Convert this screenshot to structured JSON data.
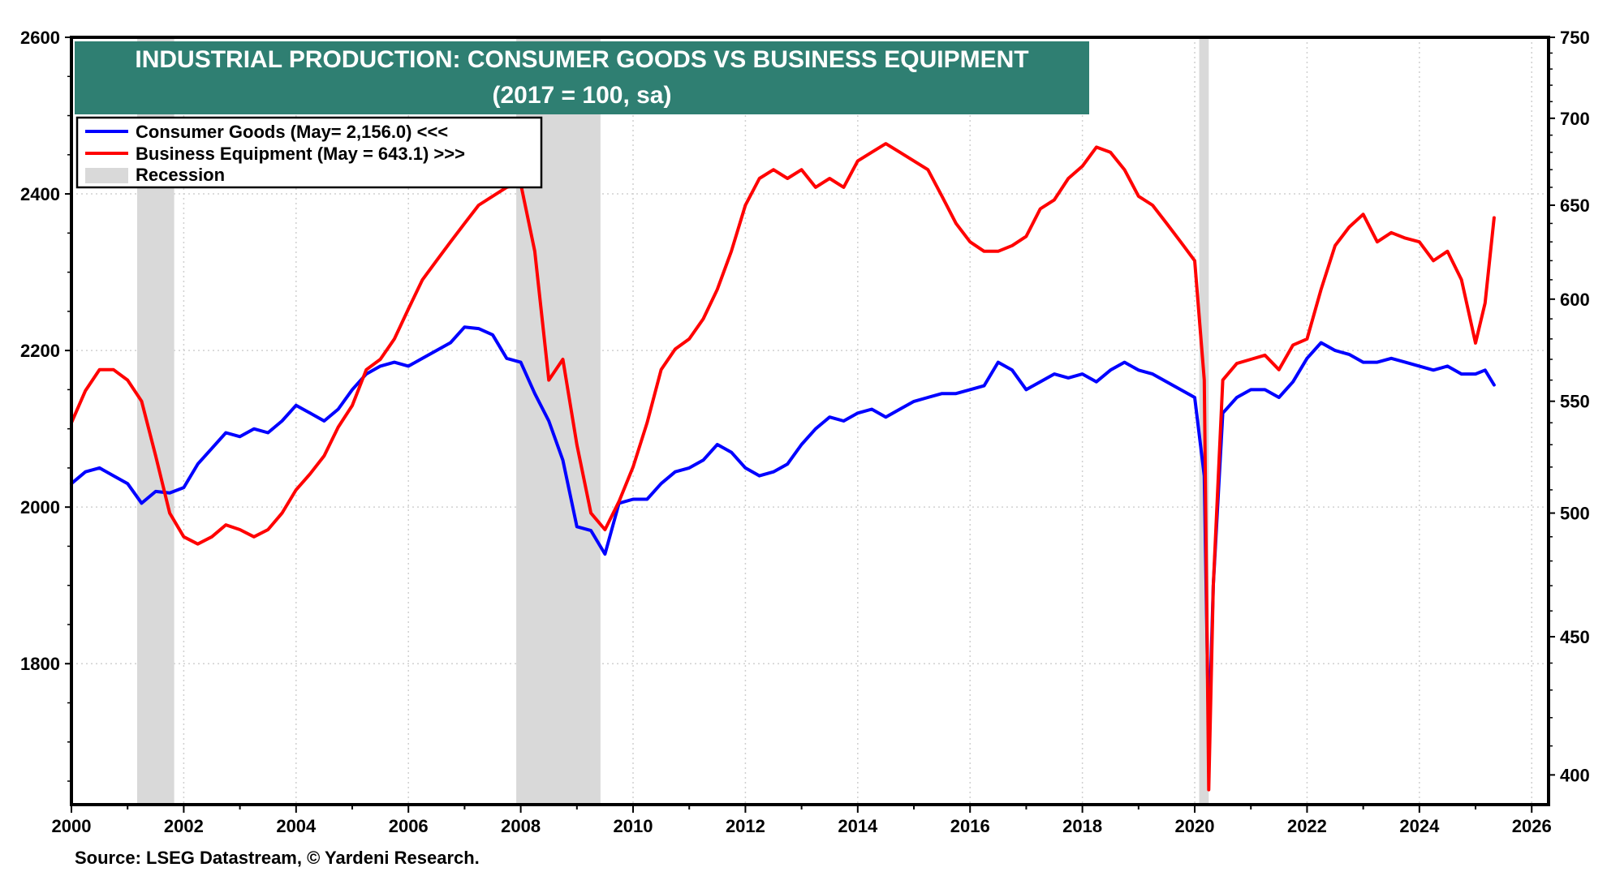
{
  "chart_data": {
    "type": "line",
    "title": "INDUSTRIAL PRODUCTION: CONSUMER GOODS VS BUSINESS EQUIPMENT",
    "subtitle": "(2017 = 100, sa)",
    "source": "Source: LSEG Datastream, © Yardeni Research.",
    "x_axis": {
      "range": [
        2000,
        2026.3
      ],
      "ticks": [
        2000,
        2002,
        2004,
        2006,
        2008,
        2010,
        2012,
        2014,
        2016,
        2018,
        2020,
        2022,
        2024,
        2026
      ],
      "tick_labels": [
        "2000",
        "2002",
        "2004",
        "2006",
        "2008",
        "2010",
        "2012",
        "2014",
        "2016",
        "2018",
        "2020",
        "2022",
        "2024",
        "2026"
      ]
    },
    "y_left": {
      "range": [
        1620,
        2600
      ],
      "ticks": [
        1800,
        2000,
        2200,
        2400,
        2600
      ],
      "tick_labels": [
        "1800",
        "2000",
        "2200",
        "2400",
        "2600"
      ],
      "scale": "linear"
    },
    "y_right": {
      "range": [
        390,
        750
      ],
      "ticks": [
        400,
        450,
        500,
        550,
        600,
        650,
        700,
        750
      ],
      "tick_labels": [
        "400",
        "450",
        "500",
        "550",
        "600",
        "650",
        "700",
        "750"
      ],
      "scale": "log"
    },
    "grid": true,
    "legend": {
      "position": "top-left",
      "items": [
        {
          "label": "Consumer Goods (May= 2,156.0) <<<",
          "color": "#0000ff",
          "kind": "line"
        },
        {
          "label": "Business Equipment (May = 643.1) >>>",
          "color": "#ff0000",
          "kind": "line"
        },
        {
          "label": "Recession",
          "color": "#d9d9d9",
          "kind": "band"
        }
      ]
    },
    "recessions": [
      [
        2001.17,
        2001.83
      ],
      [
        2007.92,
        2009.42
      ],
      [
        2020.08,
        2020.25
      ]
    ],
    "series": [
      {
        "name": "Consumer Goods (May= 2,156.0) <<<",
        "axis": "left",
        "color": "#0000ff",
        "x": [
          2000.0,
          2000.25,
          2000.5,
          2000.75,
          2001.0,
          2001.25,
          2001.5,
          2001.75,
          2002.0,
          2002.25,
          2002.5,
          2002.75,
          2003.0,
          2003.25,
          2003.5,
          2003.75,
          2004.0,
          2004.25,
          2004.5,
          2004.75,
          2005.0,
          2005.25,
          2005.5,
          2005.75,
          2006.0,
          2006.25,
          2006.5,
          2006.75,
          2007.0,
          2007.25,
          2007.5,
          2007.75,
          2008.0,
          2008.25,
          2008.5,
          2008.75,
          2009.0,
          2009.25,
          2009.5,
          2009.75,
          2010.0,
          2010.25,
          2010.5,
          2010.75,
          2011.0,
          2011.25,
          2011.5,
          2011.75,
          2012.0,
          2012.25,
          2012.5,
          2012.75,
          2013.0,
          2013.25,
          2013.5,
          2013.75,
          2014.0,
          2014.25,
          2014.5,
          2014.75,
          2015.0,
          2015.25,
          2015.5,
          2015.75,
          2016.0,
          2016.25,
          2016.5,
          2016.75,
          2017.0,
          2017.25,
          2017.5,
          2017.75,
          2018.0,
          2018.25,
          2018.5,
          2018.75,
          2019.0,
          2019.25,
          2019.5,
          2019.75,
          2020.0,
          2020.17,
          2020.25,
          2020.33,
          2020.5,
          2020.75,
          2021.0,
          2021.25,
          2021.5,
          2021.75,
          2022.0,
          2022.25,
          2022.5,
          2022.75,
          2023.0,
          2023.25,
          2023.5,
          2023.75,
          2024.0,
          2024.25,
          2024.5,
          2024.75,
          2025.0,
          2025.17,
          2025.33
        ],
        "y": [
          2030,
          2045,
          2050,
          2040,
          2030,
          2005,
          2020,
          2018,
          2025,
          2055,
          2075,
          2095,
          2090,
          2100,
          2095,
          2110,
          2130,
          2120,
          2110,
          2125,
          2150,
          2170,
          2180,
          2185,
          2180,
          2190,
          2200,
          2210,
          2230,
          2228,
          2220,
          2190,
          2185,
          2145,
          2110,
          2060,
          1975,
          1970,
          1940,
          2005,
          2010,
          2010,
          2030,
          2045,
          2050,
          2060,
          2080,
          2070,
          2050,
          2040,
          2045,
          2055,
          2080,
          2100,
          2115,
          2110,
          2120,
          2125,
          2115,
          2125,
          2135,
          2140,
          2145,
          2145,
          2150,
          2155,
          2185,
          2175,
          2150,
          2160,
          2170,
          2165,
          2170,
          2160,
          2175,
          2185,
          2175,
          2170,
          2160,
          2150,
          2140,
          2040,
          1700,
          1900,
          2120,
          2140,
          2150,
          2150,
          2140,
          2160,
          2190,
          2210,
          2200,
          2195,
          2185,
          2185,
          2190,
          2185,
          2180,
          2175,
          2180,
          2170,
          2170,
          2175,
          2156
        ]
      },
      {
        "name": "Business Equipment (May = 643.1) >>>",
        "axis": "right",
        "color": "#ff0000",
        "x": [
          2000.0,
          2000.25,
          2000.5,
          2000.75,
          2001.0,
          2001.25,
          2001.5,
          2001.75,
          2002.0,
          2002.25,
          2002.5,
          2002.75,
          2003.0,
          2003.25,
          2003.5,
          2003.75,
          2004.0,
          2004.25,
          2004.5,
          2004.75,
          2005.0,
          2005.25,
          2005.5,
          2005.75,
          2006.0,
          2006.25,
          2006.5,
          2006.75,
          2007.0,
          2007.25,
          2007.5,
          2007.75,
          2008.0,
          2008.25,
          2008.5,
          2008.75,
          2009.0,
          2009.25,
          2009.5,
          2009.75,
          2010.0,
          2010.25,
          2010.5,
          2010.75,
          2011.0,
          2011.25,
          2011.5,
          2011.75,
          2012.0,
          2012.25,
          2012.5,
          2012.75,
          2013.0,
          2013.25,
          2013.5,
          2013.75,
          2014.0,
          2014.25,
          2014.5,
          2014.75,
          2015.0,
          2015.25,
          2015.5,
          2015.75,
          2016.0,
          2016.25,
          2016.5,
          2016.75,
          2017.0,
          2017.25,
          2017.5,
          2017.75,
          2018.0,
          2018.25,
          2018.5,
          2018.75,
          2019.0,
          2019.25,
          2019.5,
          2019.75,
          2020.0,
          2020.17,
          2020.25,
          2020.33,
          2020.5,
          2020.75,
          2021.0,
          2021.25,
          2021.5,
          2021.75,
          2022.0,
          2022.25,
          2022.5,
          2022.75,
          2023.0,
          2023.25,
          2023.5,
          2023.75,
          2024.0,
          2024.25,
          2024.5,
          2024.75,
          2025.0,
          2025.17,
          2025.33
        ],
        "y": [
          540,
          555,
          565,
          565,
          560,
          550,
          525,
          500,
          490,
          487,
          490,
          495,
          493,
          490,
          493,
          500,
          510,
          517,
          525,
          538,
          548,
          565,
          570,
          580,
          595,
          610,
          620,
          630,
          640,
          650,
          655,
          660,
          662,
          625,
          560,
          570,
          530,
          500,
          493,
          505,
          520,
          540,
          565,
          575,
          580,
          590,
          605,
          625,
          650,
          665,
          670,
          665,
          670,
          660,
          665,
          660,
          675,
          680,
          685,
          680,
          675,
          670,
          655,
          640,
          630,
          625,
          625,
          628,
          633,
          648,
          653,
          665,
          672,
          683,
          680,
          670,
          655,
          650,
          640,
          630,
          620,
          560,
          395,
          470,
          560,
          568,
          570,
          572,
          565,
          577,
          580,
          605,
          628,
          638,
          645,
          630,
          635,
          632,
          630,
          620,
          625,
          610,
          578,
          598,
          643.1
        ]
      }
    ]
  }
}
